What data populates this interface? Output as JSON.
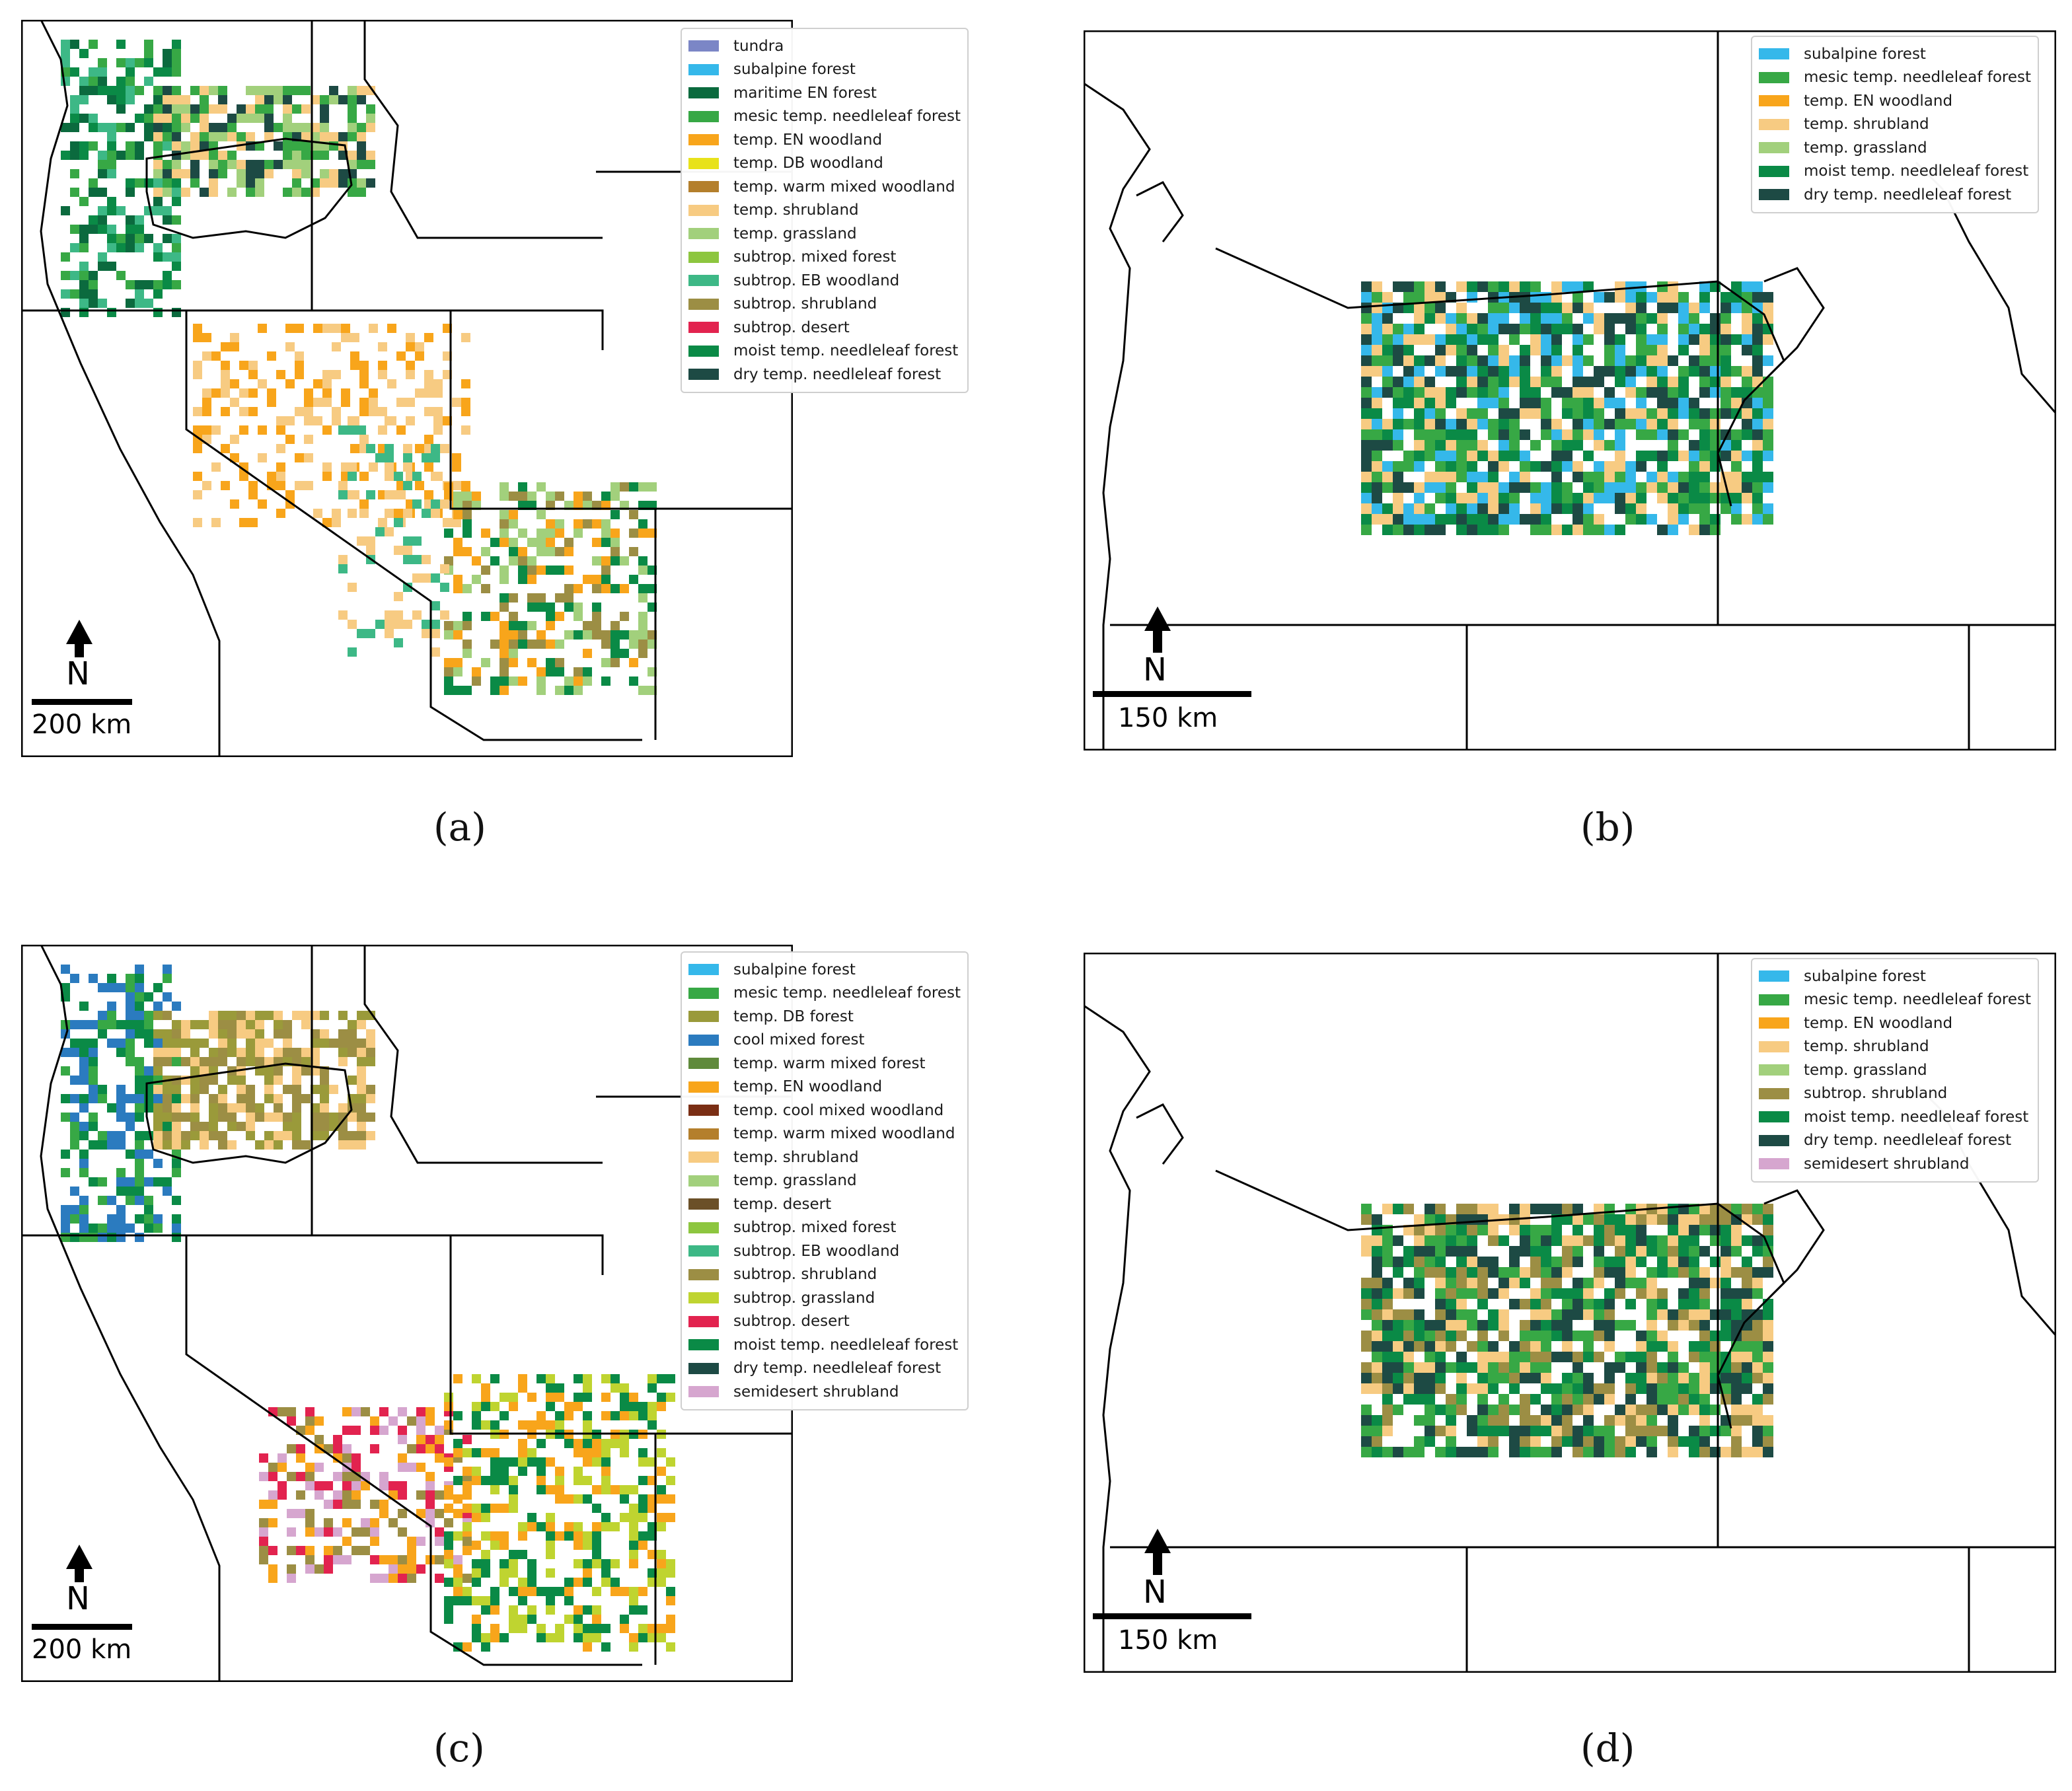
{
  "colors": {
    "tundra": "#7b86c6",
    "subalpine forest": "#35b8ea",
    "maritime EN forest": "#0b6a3e",
    "mesic temp. needleleaf forest": "#37a845",
    "temp. EN woodland": "#f8a51b",
    "temp. DB woodland": "#e8e21a",
    "temp. warm mixed woodland": "#b47f2c",
    "temp. shrubland": "#f7cb82",
    "temp. grassland": "#a2d07c",
    "subtrop. mixed forest": "#8dc63f",
    "subtrop. EB woodland": "#3db886",
    "subtrop. shrubland": "#9c8e44",
    "subtrop. desert": "#e2234f",
    "moist temp. needleleaf forest": "#0a8a46",
    "dry temp. needleleaf forest": "#1d4a44",
    "temp. DB forest": "#9a9a3a",
    "cool mixed forest": "#2b7bbf",
    "temp. warm mixed forest": "#5f8a3b",
    "temp. cool mixed woodland": "#7a2e14",
    "temp. desert": "#6b5028",
    "subtrop. grassland": "#bfd430",
    "semidesert shrubland": "#d6a6cf"
  },
  "panels": [
    {
      "id": "a",
      "caption": "(a)",
      "scale_label": "200 km",
      "north_label": "N",
      "legend": [
        "tundra",
        "subalpine forest",
        "maritime EN forest",
        "mesic temp. needleleaf forest",
        "temp. EN woodland",
        "temp. DB woodland",
        "temp. warm mixed woodland",
        "temp. shrubland",
        "temp. grassland",
        "subtrop. mixed forest",
        "subtrop. EB woodland",
        "subtrop. shrubland",
        "subtrop. desert",
        "moist temp. needleleaf forest",
        "dry temp. needleleaf forest"
      ]
    },
    {
      "id": "b",
      "caption": "(b)",
      "scale_label": "150 km",
      "north_label": "N",
      "legend": [
        "subalpine forest",
        "mesic temp. needleleaf forest",
        "temp. EN woodland",
        "temp. shrubland",
        "temp. grassland",
        "moist temp. needleleaf forest",
        "dry temp. needleleaf forest"
      ]
    },
    {
      "id": "c",
      "caption": "(c)",
      "scale_label": "200 km",
      "north_label": "N",
      "legend": [
        "subalpine forest",
        "mesic temp. needleleaf forest",
        "temp. DB forest",
        "cool mixed forest",
        "temp. warm mixed forest",
        "temp. EN woodland",
        "temp. cool mixed woodland",
        "temp. warm mixed woodland",
        "temp. shrubland",
        "temp. grassland",
        "temp. desert",
        "subtrop. mixed forest",
        "subtrop. EB woodland",
        "subtrop. shrubland",
        "subtrop. grassland",
        "subtrop. desert",
        "moist temp. needleleaf forest",
        "dry temp. needleleaf forest",
        "semidesert shrubland"
      ]
    },
    {
      "id": "d",
      "caption": "(d)",
      "scale_label": "150 km",
      "north_label": "N",
      "legend": [
        "subalpine forest",
        "mesic temp. needleleaf forest",
        "temp. EN woodland",
        "temp. shrubland",
        "temp. grassland",
        "subtrop. shrubland",
        "moist temp. needleleaf forest",
        "dry temp. needleleaf forest",
        "semidesert shrubland"
      ]
    }
  ]
}
